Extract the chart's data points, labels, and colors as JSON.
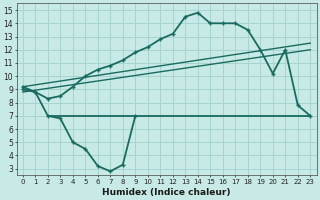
{
  "xlabel": "Humidex (Indice chaleur)",
  "bg_color": "#c8eae6",
  "grid_color": "#a8d4d0",
  "line_color": "#1a6b5f",
  "xlim": [
    -0.5,
    23.5
  ],
  "ylim": [
    2.5,
    15.5
  ],
  "xticks": [
    0,
    1,
    2,
    3,
    4,
    5,
    6,
    7,
    8,
    9,
    10,
    11,
    12,
    13,
    14,
    15,
    16,
    17,
    18,
    19,
    20,
    21,
    22,
    23
  ],
  "yticks": [
    3,
    4,
    5,
    6,
    7,
    8,
    9,
    10,
    11,
    12,
    13,
    14,
    15
  ],
  "series": [
    {
      "x": [
        0,
        1,
        2,
        3,
        4,
        5,
        6,
        7,
        8,
        9
      ],
      "y": [
        9.0,
        8.8,
        7.0,
        6.8,
        5.0,
        4.5,
        3.2,
        2.8,
        3.3,
        7.0
      ],
      "marker": "+",
      "lw": 1.3
    },
    {
      "x": [
        2,
        9,
        10,
        11,
        12,
        13,
        14,
        15,
        16,
        17,
        18,
        19,
        20,
        21,
        22,
        23
      ],
      "y": [
        7.0,
        7.0,
        7.0,
        7.0,
        7.0,
        7.0,
        7.0,
        7.0,
        7.0,
        7.0,
        7.0,
        7.0,
        7.0,
        7.0,
        7.0,
        7.0
      ],
      "marker": null,
      "lw": 1.3
    },
    {
      "x": [
        0,
        1,
        2,
        3,
        4,
        5,
        6,
        7,
        8,
        9,
        10,
        11,
        12,
        13,
        14,
        15,
        16,
        17,
        18,
        19,
        20,
        21,
        22,
        23
      ],
      "y": [
        9.2,
        8.8,
        8.3,
        8.5,
        9.2,
        10.0,
        10.5,
        10.8,
        11.2,
        11.8,
        12.2,
        12.8,
        13.2,
        14.5,
        14.8,
        14.0,
        14.0,
        14.0,
        13.5,
        12.0,
        10.2,
        12.0,
        7.8,
        7.0
      ],
      "marker": "+",
      "lw": 1.3
    },
    {
      "x": [
        0,
        23
      ],
      "y": [
        8.8,
        12.0
      ],
      "marker": null,
      "lw": 1.0
    },
    {
      "x": [
        0,
        23
      ],
      "y": [
        9.2,
        12.5
      ],
      "marker": null,
      "lw": 1.0
    }
  ]
}
